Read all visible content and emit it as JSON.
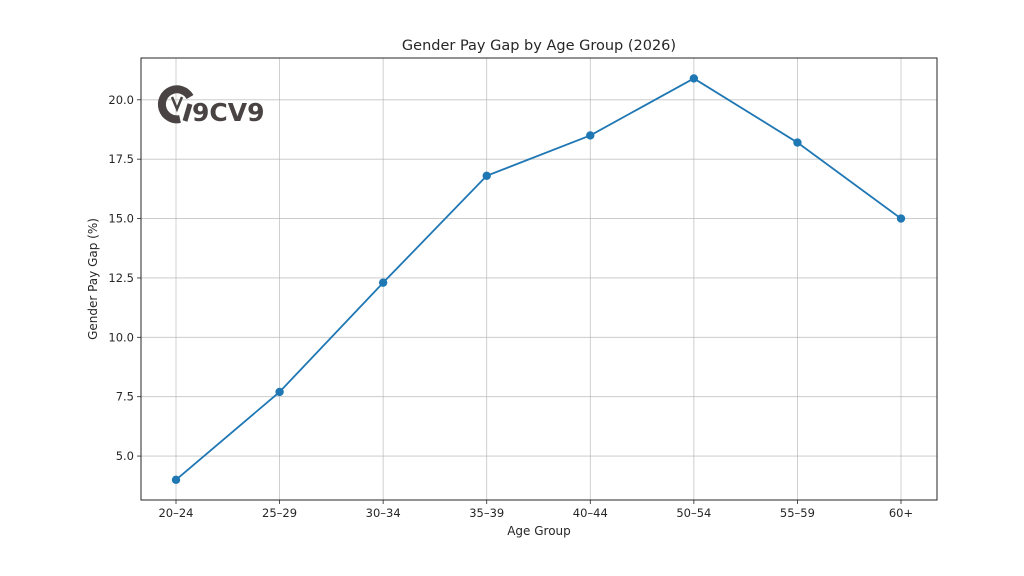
{
  "chart_data": {
    "type": "line",
    "title": "Gender Pay Gap by Age Group (2026)",
    "xlabel": "Age Group",
    "ylabel": "Gender Pay Gap (%)",
    "categories": [
      "20–24",
      "25–29",
      "30–34",
      "35–39",
      "40–44",
      "50–54",
      "55–59",
      "60+"
    ],
    "series": [
      {
        "name": "Gender Pay Gap",
        "values": [
          4.0,
          7.7,
          12.3,
          16.8,
          18.5,
          20.9,
          18.2,
          15.0
        ],
        "color": "#1f77b4",
        "marker": "circle"
      }
    ],
    "yticks": [
      5.0,
      7.5,
      10.0,
      12.5,
      15.0,
      17.5,
      20.0
    ],
    "ytick_labels": [
      "5.0",
      "7.5",
      "10.0",
      "12.5",
      "15.0",
      "17.5",
      "20.0"
    ],
    "ylim": [
      3.15,
      21.76
    ],
    "grid": true,
    "legend": null
  },
  "watermark": {
    "text": "9CV9",
    "color": "#4a4343"
  }
}
